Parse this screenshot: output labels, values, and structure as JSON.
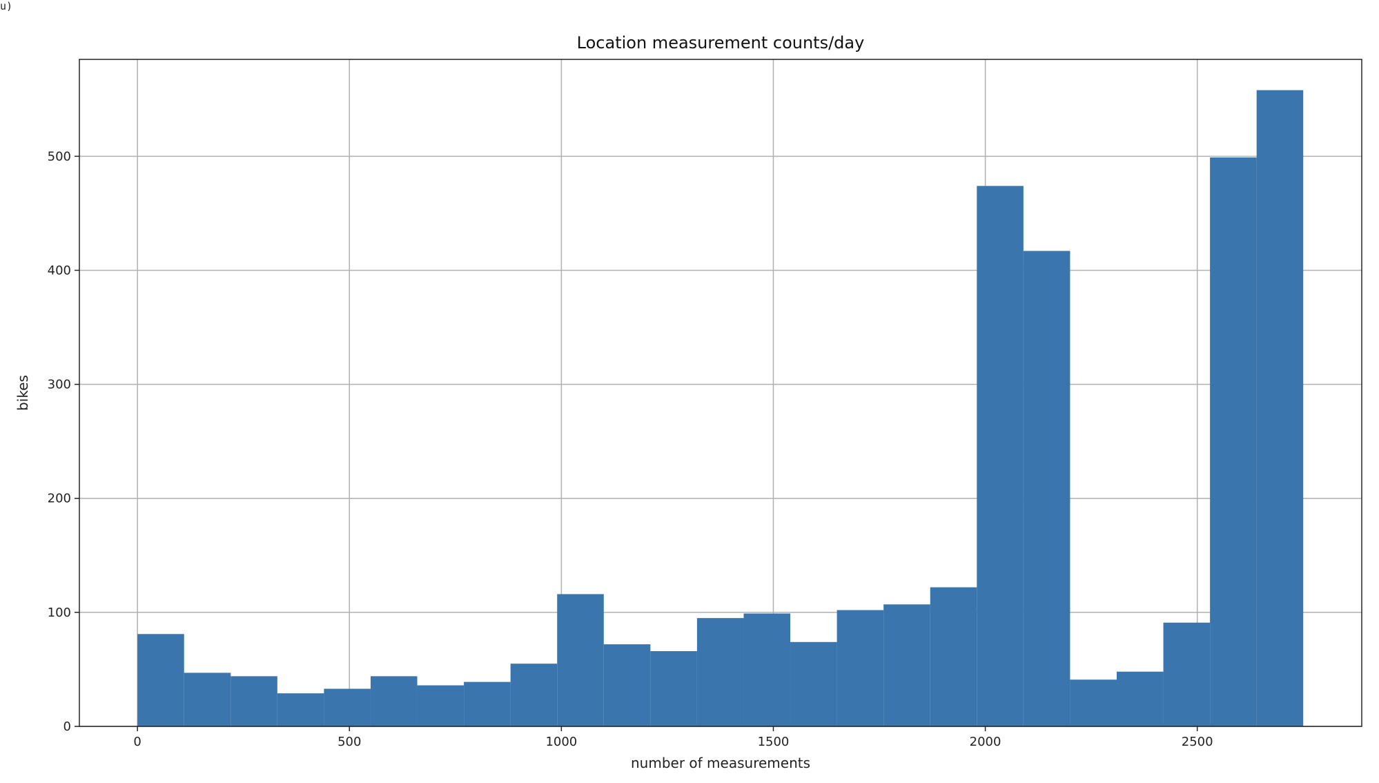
{
  "header_fragment": "u)",
  "chart_data": {
    "type": "bar",
    "title": "Location measurement counts/day",
    "xlabel": "number of measurements",
    "ylabel": "bikes",
    "xlim": [
      -137,
      2888
    ],
    "ylim": [
      0,
      585
    ],
    "xticks": [
      0,
      500,
      1000,
      1500,
      2000,
      2500
    ],
    "yticks": [
      0,
      100,
      200,
      300,
      400,
      500
    ],
    "grid": true,
    "bar_color": "#3a76ad",
    "bins": {
      "start": 0,
      "width": 110,
      "counts": [
        81,
        47,
        44,
        29,
        33,
        44,
        36,
        39,
        55,
        116,
        72,
        66,
        95,
        99,
        74,
        102,
        107,
        122,
        474,
        417,
        41,
        48,
        91,
        499,
        558
      ]
    }
  }
}
